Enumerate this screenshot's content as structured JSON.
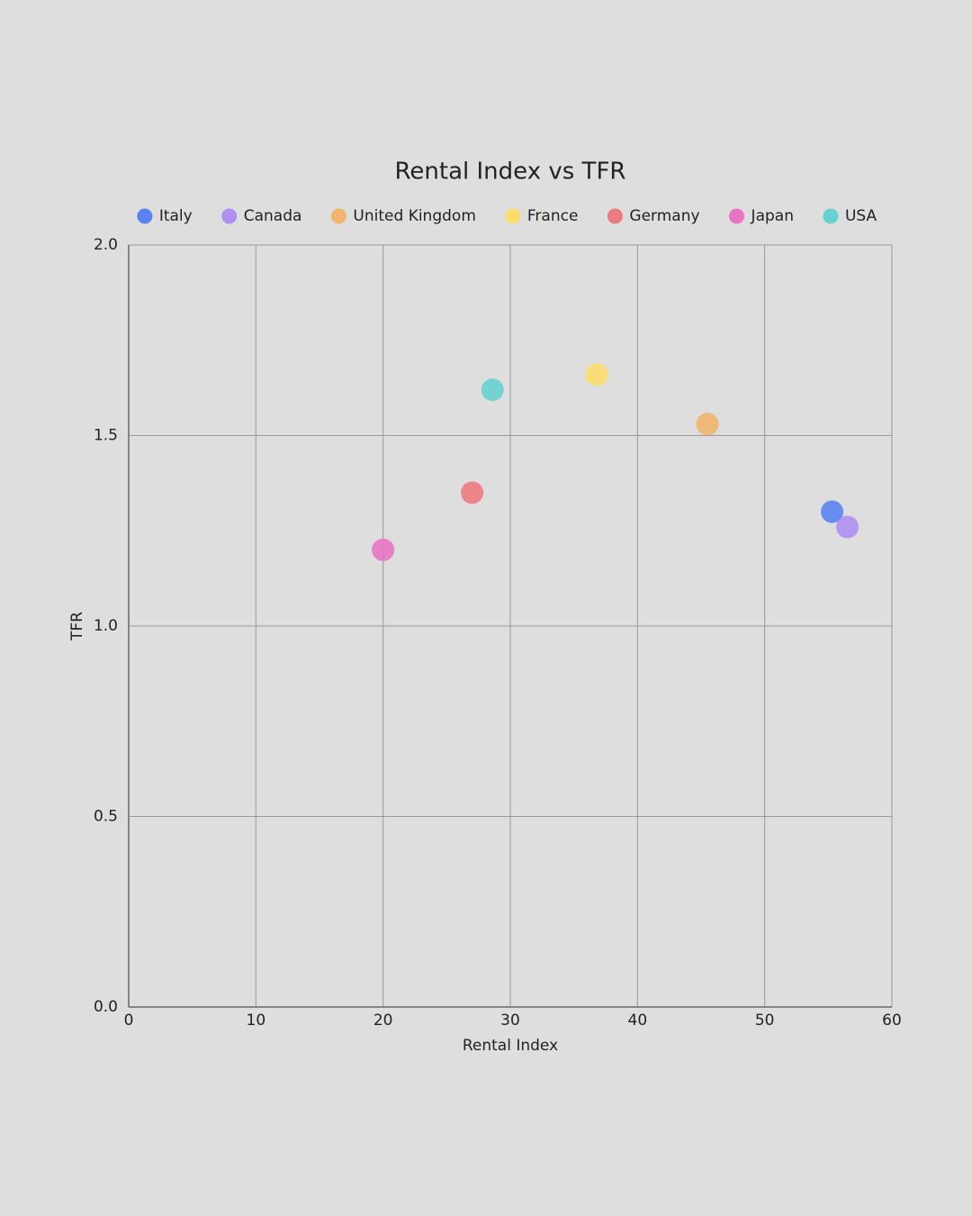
{
  "chart_data": {
    "type": "scatter",
    "title": "Rental Index vs TFR",
    "x_label": "Rental Index",
    "y_label": "TFR",
    "series": [
      {
        "name": "Italy",
        "color": "#5b82f0",
        "x": [
          55.3
        ],
        "values": [
          1.3
        ]
      },
      {
        "name": "Canada",
        "color": "#b08ef2",
        "x": [
          56.5
        ],
        "values": [
          1.26
        ]
      },
      {
        "name": "United Kingdom",
        "color": "#f0b46e",
        "x": [
          45.5
        ],
        "values": [
          1.53
        ]
      },
      {
        "name": "France",
        "color": "#fbdd6e",
        "x": [
          36.8
        ],
        "values": [
          1.66
        ]
      },
      {
        "name": "Germany",
        "color": "#ec7b80",
        "x": [
          27.0
        ],
        "values": [
          1.35
        ]
      },
      {
        "name": "Japan",
        "color": "#e875c4",
        "x": [
          20.0
        ],
        "values": [
          1.2
        ]
      },
      {
        "name": "USA",
        "color": "#66d2d0",
        "x": [
          28.6
        ],
        "values": [
          1.62
        ]
      }
    ],
    "xlim": [
      0,
      60
    ],
    "xticks": [
      0,
      10,
      20,
      30,
      40,
      50,
      60
    ],
    "ylim": [
      0,
      2
    ],
    "yticks": [
      {
        "value": 0,
        "label": "0.0"
      },
      0.5,
      {
        "value": 1,
        "label": "1.0"
      },
      1.5,
      {
        "value": 2,
        "label": "2.0"
      }
    ],
    "grid": true
  }
}
